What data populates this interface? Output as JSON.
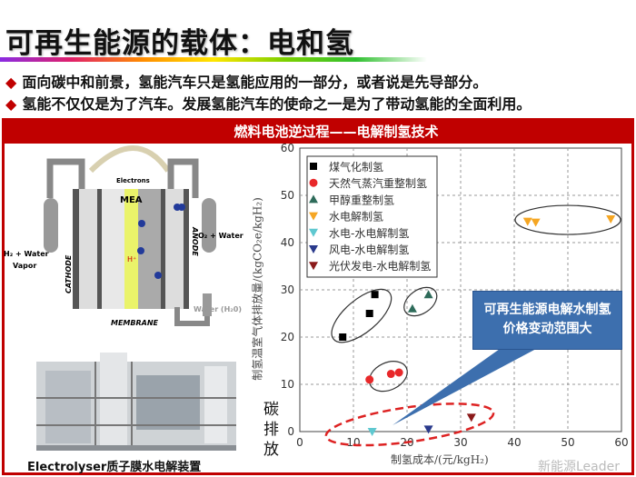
{
  "title": "可再生能源的载体：电和氢",
  "bullets": [
    "面向碳中和前景，氢能汽车只是氢能应用的一部分，或者说是先导部分。",
    "氢能不仅仅是为了汽车。发展氢能汽车的使命之一是为了带动氢能的全面利用。"
  ],
  "bullet_icon": "diamond-icon",
  "section_header": "燃料电池逆过程——电解制氢技术",
  "diagram": {
    "electrons": "Electrons",
    "mea": "MEA",
    "h_plus": "H⁺",
    "cathode": "CATHODE",
    "anode": "ANODE",
    "membrane": "MEMBRANE",
    "left_label_1": "H₂ + Water",
    "left_label_2": "Vapor",
    "right_label": "O₂ + Water",
    "water_label": "Water (H₂0)"
  },
  "photo_caption": "Electrolyser质子膜水电解装置",
  "callout": [
    "可再生能源电解水制氢",
    "价格变动范围大"
  ],
  "side_label": "碳排放",
  "watermark": "新能源Leader",
  "accent": "#c00000",
  "chart_data": {
    "type": "scatter",
    "xlabel": "制氢成本/(元/kgH₂)",
    "ylabel": "制氢温室气体排放量/(kgCO₂e/kgH₂)",
    "xlim": [
      0,
      60
    ],
    "ylim": [
      0,
      60
    ],
    "xticks": [
      0,
      10,
      20,
      30,
      40,
      50,
      60
    ],
    "yticks": [
      0,
      10,
      20,
      30,
      40,
      50,
      60
    ],
    "grid": true,
    "legend": "top-left",
    "series": [
      {
        "name": "煤气化制氢",
        "marker": "square",
        "color": "#000000",
        "x": [
          8,
          13,
          14
        ],
        "y": [
          20,
          25,
          29
        ]
      },
      {
        "name": "天然气蒸汽重整制氢",
        "marker": "circle",
        "color": "#e8282a",
        "x": [
          13,
          17,
          18.5
        ],
        "y": [
          11,
          12.2,
          12.5
        ]
      },
      {
        "name": "甲醇重整制氢",
        "marker": "triangle-up",
        "color": "#2e6b5a",
        "x": [
          21,
          24
        ],
        "y": [
          26,
          29
        ]
      },
      {
        "name": "水电解制氢",
        "marker": "triangle-down",
        "color": "#f5a623",
        "x": [
          42.5,
          44,
          58
        ],
        "y": [
          44.5,
          44.3,
          45
        ]
      },
      {
        "name": "水电-水电解制氢",
        "marker": "triangle-down",
        "color": "#5fc8d0",
        "x": [
          13.5
        ],
        "y": [
          0
        ]
      },
      {
        "name": "风电-水电解制氢",
        "marker": "triangle-down",
        "color": "#2a3a8c",
        "x": [
          24
        ],
        "y": [
          0.5
        ]
      },
      {
        "name": "光伏发电-水电解制氢",
        "marker": "triangle-down",
        "color": "#8b1a1a",
        "x": [
          32
        ],
        "y": [
          3
        ]
      }
    ]
  }
}
